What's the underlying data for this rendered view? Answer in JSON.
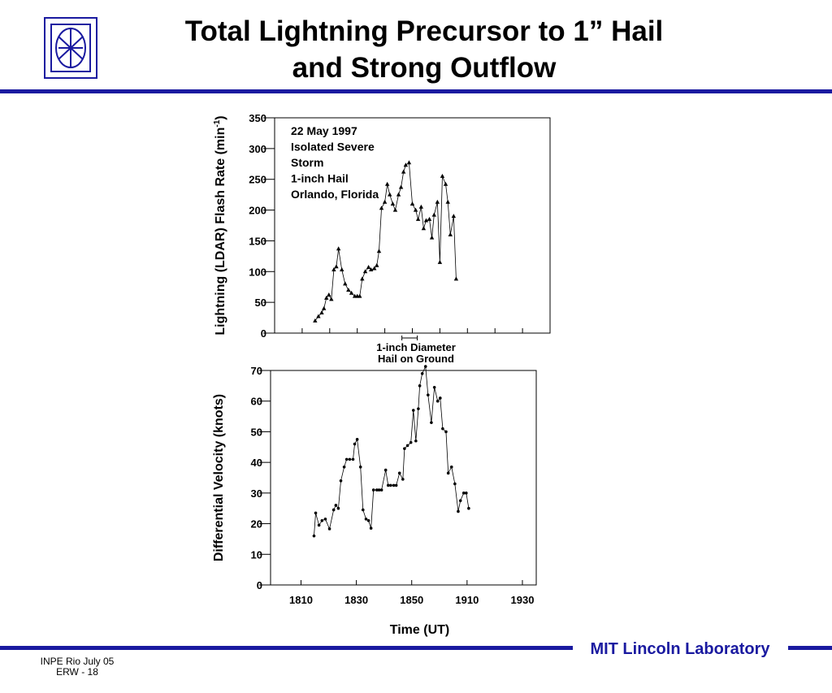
{
  "slide": {
    "title_lines": [
      "Total Lightning Precursor to 1” Hail",
      "and Strong Outflow"
    ],
    "footer_lab": "MIT Lincoln Laboratory",
    "footer_lines": [
      "INPE Rio  July 05",
      "ERW - 18"
    ]
  },
  "chart_data": [
    {
      "type": "line",
      "marker": "triangle",
      "color": "#000000",
      "ylabel": "Lightning (LDAR) Flash Rate (min",
      "ylabel_superscript": "-1",
      "ylabel_suffix": ")",
      "annotation": [
        "22 May 1997",
        "Isolated Severe",
        "Storm",
        "1-inch Hail",
        "Orlando, Florida"
      ],
      "span_label": [
        "1-inch Diameter",
        "Hail on Ground"
      ],
      "span": [
        46.2,
        51.8
      ],
      "xlim": [
        0,
        100
      ],
      "xticks": [
        10,
        20,
        30,
        40,
        50,
        60,
        70,
        80,
        90
      ],
      "ylim": [
        0,
        350
      ],
      "yticks": [
        0,
        50,
        100,
        150,
        200,
        250,
        300,
        350
      ],
      "x": [
        14.7,
        15.9,
        17.1,
        17.9,
        18.8,
        19.7,
        20.6,
        21.5,
        22.4,
        23.2,
        24.4,
        25.6,
        26.8,
        27.9,
        29.1,
        30.0,
        30.9,
        31.8,
        32.9,
        34.1,
        35.0,
        36.2,
        37.1,
        37.9,
        38.8,
        40.0,
        40.9,
        41.8,
        42.9,
        43.8,
        45.0,
        45.9,
        46.8,
        47.6,
        48.8,
        50.0,
        51.2,
        52.1,
        53.2,
        54.1,
        55.0,
        56.2,
        57.1,
        57.9,
        59.1,
        60.0,
        60.9,
        62.1,
        62.9,
        63.8,
        65.0,
        65.9
      ],
      "values": [
        20,
        27,
        33,
        40,
        57,
        62,
        55,
        103,
        108,
        137,
        103,
        80,
        70,
        65,
        60,
        60,
        60,
        88,
        100,
        107,
        103,
        105,
        110,
        133,
        203,
        213,
        242,
        225,
        210,
        200,
        225,
        237,
        262,
        273,
        277,
        210,
        200,
        185,
        205,
        170,
        183,
        185,
        155,
        192,
        213,
        115,
        255,
        242,
        213,
        160,
        190,
        88
      ]
    },
    {
      "type": "line",
      "marker": "dot",
      "color": "#000000",
      "ylabel": "Differential Velocity (knots)",
      "xlabel": "Time (UT)",
      "xlim": [
        -1,
        95
      ],
      "xticks": [
        {
          "value": 10,
          "label": "1810"
        },
        {
          "value": 30,
          "label": "1830"
        },
        {
          "value": 50,
          "label": "1850"
        },
        {
          "value": 70,
          "label": "1910"
        },
        {
          "value": 90,
          "label": "1930"
        }
      ],
      "ylim": [
        0,
        70
      ],
      "yticks": [
        0,
        10,
        20,
        30,
        40,
        50,
        60,
        70
      ],
      "x": [
        14.7,
        15.3,
        16.5,
        17.6,
        18.8,
        20.3,
        21.8,
        22.6,
        23.5,
        24.4,
        25.6,
        26.5,
        27.6,
        28.8,
        29.4,
        30.3,
        31.5,
        32.4,
        33.5,
        34.4,
        35.3,
        36.2,
        37.4,
        38.2,
        39.1,
        40.6,
        41.5,
        42.4,
        43.5,
        44.4,
        45.6,
        46.8,
        47.4,
        48.5,
        49.7,
        50.6,
        51.5,
        52.4,
        52.9,
        53.8,
        55.0,
        55.9,
        57.1,
        58.2,
        59.4,
        60.3,
        61.2,
        62.4,
        63.2,
        64.4,
        65.6,
        66.8,
        67.6,
        68.8,
        69.7,
        70.6
      ],
      "values": [
        16,
        23.5,
        19.5,
        21,
        21.5,
        18.3,
        24.5,
        26,
        25,
        34,
        38.5,
        41,
        41,
        41,
        46,
        47.5,
        38.5,
        24.5,
        21.5,
        21,
        18.5,
        31,
        31,
        31,
        31,
        37.5,
        32.5,
        32.5,
        32.5,
        32.5,
        36.5,
        34.5,
        44.5,
        45.5,
        46.5,
        57,
        47,
        57.5,
        65,
        69,
        71.3,
        62,
        53,
        64.5,
        60,
        61,
        51,
        50,
        36.5,
        38.5,
        33,
        24,
        27.5,
        30,
        30,
        25
      ]
    }
  ]
}
